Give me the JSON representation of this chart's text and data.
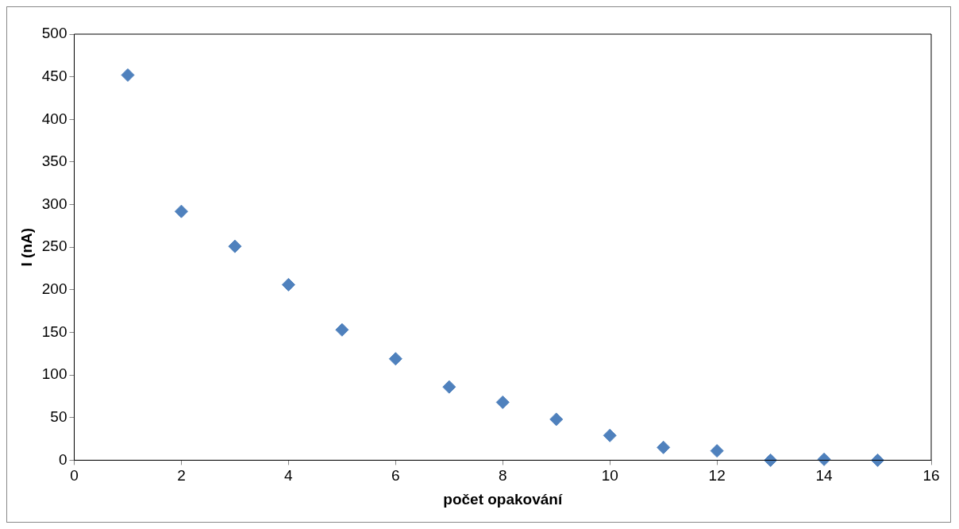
{
  "chart_data": {
    "type": "scatter",
    "xlabel": "počet opakování",
    "ylabel": "I (nA)",
    "x": [
      1,
      2,
      3,
      4,
      5,
      6,
      7,
      8,
      9,
      10,
      11,
      12,
      13,
      14,
      15
    ],
    "series": [
      {
        "color": "#4f81bd",
        "values": [
          452,
          292,
          251,
          206,
          153,
          119,
          86,
          68,
          48,
          29,
          15,
          11,
          0,
          1,
          0
        ]
      }
    ],
    "xlim": [
      0,
      16
    ],
    "xticks": [
      0,
      2,
      4,
      6,
      8,
      10,
      12,
      14,
      16
    ],
    "ylim": [
      0,
      500
    ],
    "yticks": [
      0,
      50,
      100,
      150,
      200,
      250,
      300,
      350,
      400,
      450,
      500
    ],
    "marker": "diamond",
    "grid": false,
    "legend": false
  }
}
